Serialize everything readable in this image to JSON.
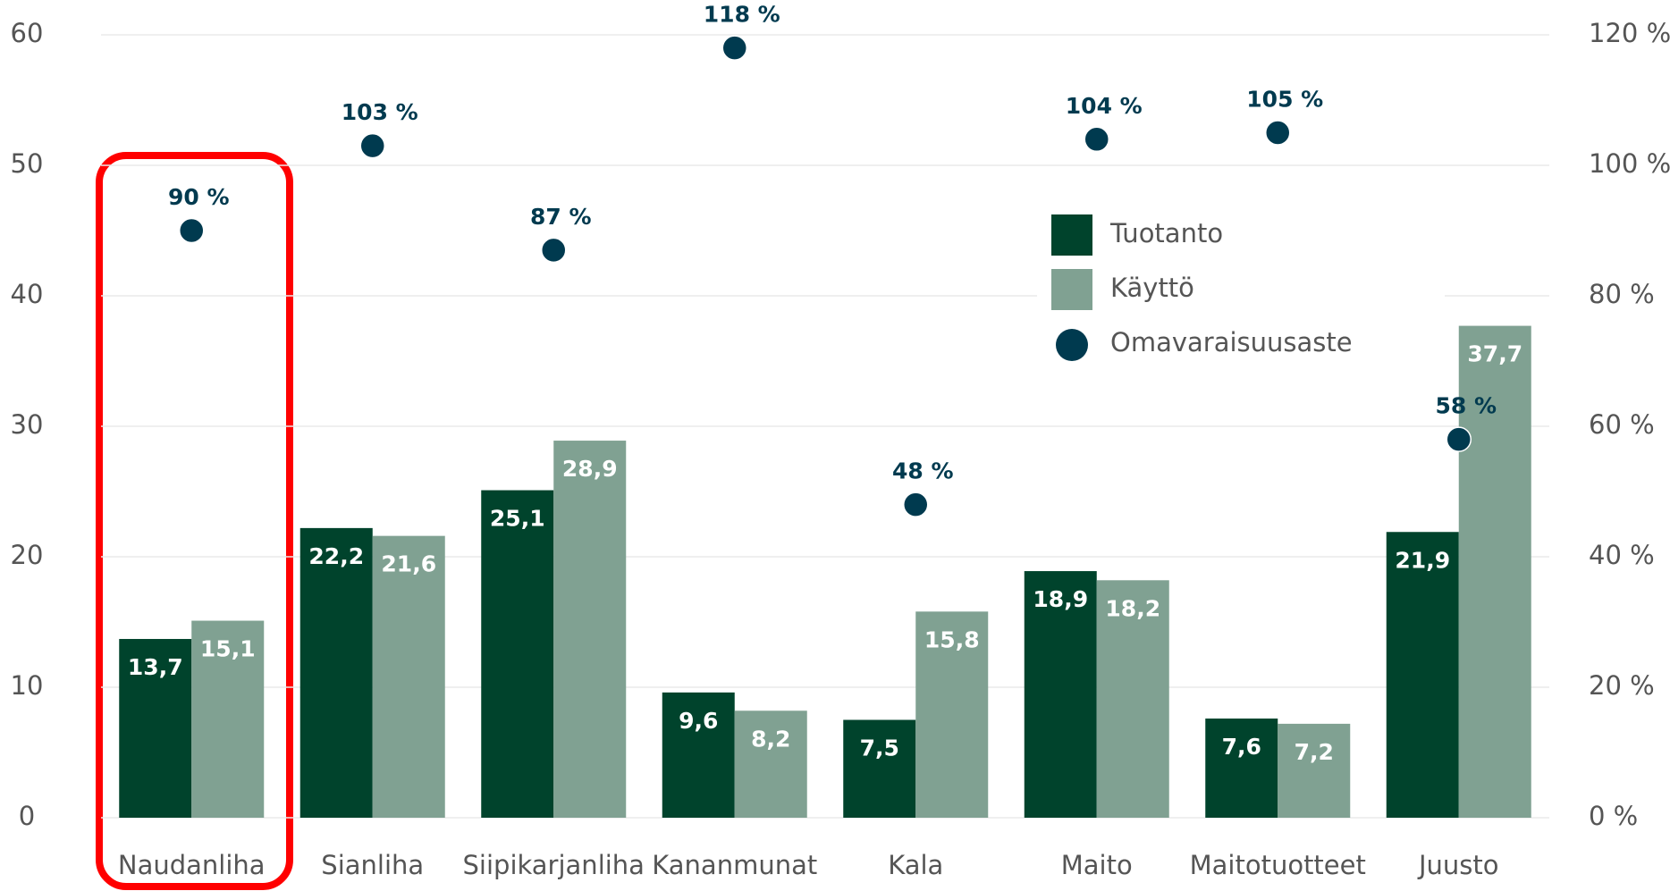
{
  "chart_data": {
    "type": "bar",
    "categories": [
      "Naudanliha",
      "Sianliha",
      "Siipikarjanliha",
      "Kananmunat",
      "Kala",
      "Maito",
      "Maitotuotteet",
      "Juusto"
    ],
    "series": [
      {
        "name": "Tuotanto",
        "color": "#00432c",
        "values": [
          13.7,
          22.2,
          25.1,
          9.6,
          7.5,
          18.9,
          7.6,
          21.9
        ],
        "value_labels": [
          "13,7",
          "22,2",
          "25,1",
          "9,6",
          "7,5",
          "18,9",
          "7,6",
          "21,9"
        ]
      },
      {
        "name": "Käyttö",
        "color": "#80a192",
        "values": [
          15.1,
          21.6,
          28.9,
          8.2,
          15.8,
          18.2,
          7.2,
          37.7
        ],
        "value_labels": [
          "15,1",
          "21,6",
          "28,9",
          "8,2",
          "15,8",
          "18,2",
          "7,2",
          "37,7"
        ]
      },
      {
        "name": "Omavaraisuusaste",
        "color": "#003a4f",
        "type": "scatter",
        "axis": "y2",
        "values": [
          90,
          103,
          87,
          118,
          48,
          104,
          105,
          58
        ],
        "value_labels": [
          "90 %",
          "103 %",
          "87 %",
          "118 %",
          "48 %",
          "104 %",
          "105 %",
          "58 %"
        ]
      }
    ],
    "ylim": [
      0,
      60
    ],
    "yticks": [
      0,
      10,
      20,
      30,
      40,
      50,
      60
    ],
    "y2lim": [
      0,
      120
    ],
    "y2ticks": [
      {
        "value": 0,
        "label": "0 %"
      },
      {
        "value": 20,
        "label": "20 %"
      },
      {
        "value": 40,
        "label": "40 %"
      },
      {
        "value": 60,
        "label": "60 %"
      },
      {
        "value": 80,
        "label": "80 %"
      },
      {
        "value": 100,
        "label": "100 %"
      },
      {
        "value": 120,
        "label": "120 %"
      }
    ],
    "grid": true
  }
}
